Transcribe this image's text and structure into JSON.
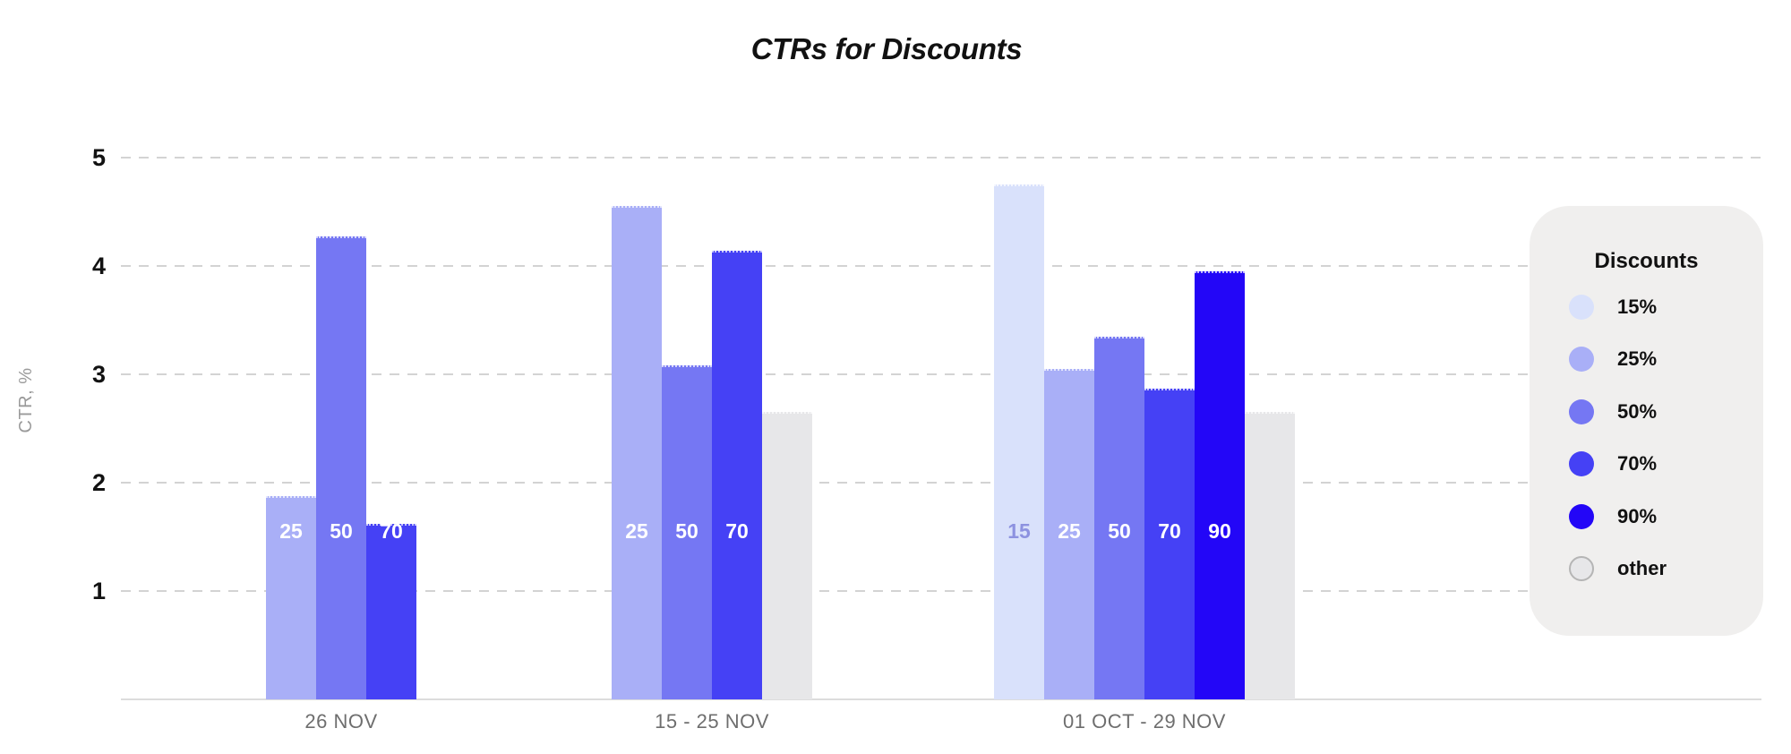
{
  "chart_data": {
    "type": "bar",
    "title": "CTRs for Discounts",
    "ylabel": "CTR, %",
    "xlabel": "",
    "ylim": [
      0,
      5
    ],
    "yticks": [
      1,
      2,
      3,
      4,
      5
    ],
    "grid": "horizontal-dashed",
    "legend": {
      "title": "Discounts",
      "position": "right"
    },
    "categories": [
      "26 NOV",
      "15 - 25 NOV",
      "01 OCT - 29 NOV"
    ],
    "series": [
      {
        "name": "15%",
        "color": "#d9e1fb",
        "bar_label": "15",
        "bar_label_color": "#8d92e0",
        "values": [
          null,
          null,
          4.75
        ]
      },
      {
        "name": "25%",
        "color": "#a9aff7",
        "bar_label": "25",
        "bar_label_color": "#ffffff",
        "values": [
          1.88,
          4.55,
          3.05
        ]
      },
      {
        "name": "50%",
        "color": "#7577f3",
        "bar_label": "50",
        "bar_label_color": "#ffffff",
        "values": [
          4.27,
          3.08,
          3.35
        ]
      },
      {
        "name": "70%",
        "color": "#4541f5",
        "bar_label": "70",
        "bar_label_color": "#ffffff",
        "values": [
          1.62,
          4.14,
          2.87
        ]
      },
      {
        "name": "90%",
        "color": "#2306f7",
        "bar_label": "90",
        "bar_label_color": "#ffffff",
        "values": [
          null,
          null,
          3.95
        ]
      },
      {
        "name": "other",
        "color": "#e7e7e9",
        "swatch_border": "#b5b5b5",
        "bar_label": "",
        "values": [
          null,
          2.65,
          2.65
        ]
      }
    ]
  },
  "colors": {
    "title": "#111111",
    "grid": "#d3d3d3",
    "axis_line": "#dcdcdc",
    "y_tick_label": "#121212",
    "x_label": "#6e6e6e",
    "y_axis_label": "#9a9a9a",
    "legend_bg": "#f0efee"
  }
}
